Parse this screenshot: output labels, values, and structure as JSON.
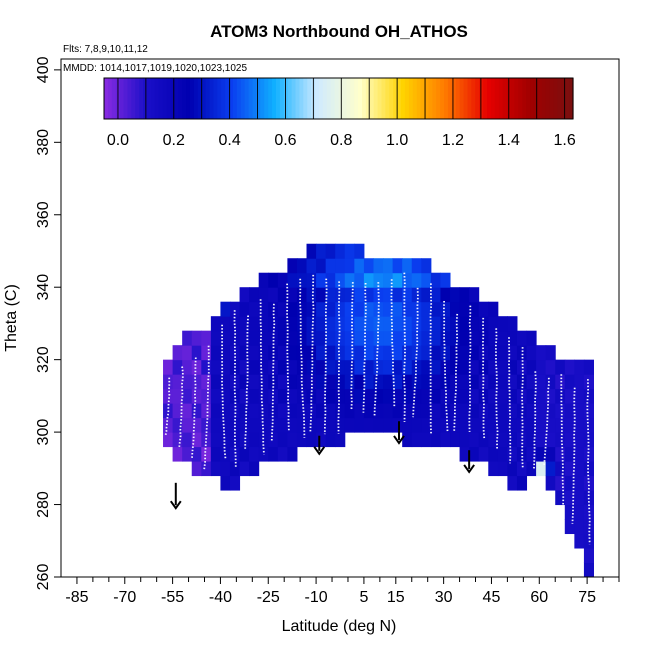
{
  "chart_data": {
    "type": "heatmap",
    "title": "ATOM3 Northbound OH_ATHOS",
    "flights_text": "Flts: 7,8,9,10,11,12",
    "dates_text": "MMDD: 1014,1017,1019,1020,1023,1025",
    "xlabel": "Latitude (deg N)",
    "ylabel": "Theta (C)",
    "xlim": [
      -90,
      85
    ],
    "ylim": [
      260,
      403
    ],
    "x_ticks": [
      -85,
      -70,
      -55,
      -40,
      -25,
      -10,
      5,
      15,
      30,
      45,
      60,
      75
    ],
    "x_minor_ticks": [
      -80,
      -75,
      -65,
      -60,
      -50,
      -45,
      -35,
      -30,
      -20,
      -15,
      -5,
      0,
      10,
      20,
      25,
      35,
      40,
      50,
      55,
      65,
      70,
      80,
      85
    ],
    "y_ticks": [
      260,
      280,
      300,
      320,
      340,
      360,
      380,
      400
    ],
    "colorbar": {
      "min": -0.05,
      "max": 1.63,
      "ticks": [
        0.0,
        0.2,
        0.4,
        0.6,
        0.8,
        1.0,
        1.2,
        1.4,
        1.6
      ],
      "tick_labels": [
        "0.0",
        "0.2",
        "0.4",
        "0.6",
        "0.8",
        "1.0",
        "1.2",
        "1.4",
        "1.6"
      ],
      "colors": [
        "#8a2be2",
        "#1a0fc8",
        "#0000b0",
        "#0a3ef0",
        "#10b0ff",
        "#cfeaff",
        "#ffffcc",
        "#ffd400",
        "#ff7a00",
        "#e60000",
        "#a00000",
        "#7a1010"
      ]
    },
    "arrows": [
      {
        "lat": -54,
        "theta_top": 286,
        "theta_bottom": 279
      },
      {
        "lat": -9,
        "theta_top": 299,
        "theta_bottom": 294
      },
      {
        "lat": 16,
        "theta_top": 303,
        "theta_bottom": 297
      },
      {
        "lat": 38,
        "theta_top": 295,
        "theta_bottom": 289
      }
    ],
    "field_profile": [
      [
        -58,
        297,
        318
      ],
      [
        -55,
        292,
        321
      ],
      [
        -50,
        290,
        325
      ],
      [
        -45,
        287,
        327
      ],
      [
        -40,
        286,
        333
      ],
      [
        -35,
        286,
        336
      ],
      [
        -30,
        289,
        339
      ],
      [
        -25,
        291,
        341
      ],
      [
        -20,
        292,
        343
      ],
      [
        -15,
        296,
        347
      ],
      [
        -10,
        297,
        350
      ],
      [
        -5,
        296,
        349
      ],
      [
        0,
        298,
        349
      ],
      [
        5,
        299,
        348
      ],
      [
        10,
        300,
        347
      ],
      [
        15,
        299,
        346
      ],
      [
        20,
        297,
        346
      ],
      [
        25,
        296,
        344
      ],
      [
        30,
        295,
        341
      ],
      [
        35,
        294,
        339
      ],
      [
        40,
        293,
        336
      ],
      [
        45,
        290,
        333
      ],
      [
        50,
        286,
        330
      ],
      [
        55,
        286,
        326
      ],
      [
        60,
        288,
        324
      ],
      [
        63,
        285,
        321
      ],
      [
        66,
        279,
        320
      ],
      [
        70,
        272,
        320
      ],
      [
        74,
        263,
        319
      ],
      [
        77,
        260,
        319
      ]
    ]
  }
}
